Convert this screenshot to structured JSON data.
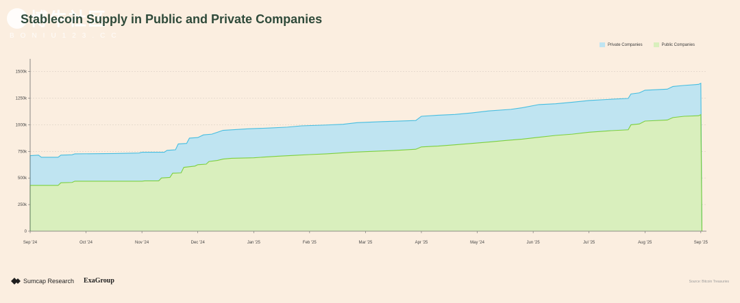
{
  "title": "Stablecoin Supply in Public and Private Companies",
  "watermark": {
    "cn": "博牛社区",
    "latin": "BONIU123.CC"
  },
  "legend": [
    {
      "label": "Private Companies",
      "color": "#bfe4f1"
    },
    {
      "label": "Public Companies",
      "color": "#d9efbd"
    }
  ],
  "footer": {
    "brand1": "Sumcap Research",
    "brand2": "ExaGroup",
    "source": "Source: Bitcoin Treasuries"
  },
  "chart_data": {
    "type": "area",
    "stacked": true,
    "y_ticks": [
      "0",
      "250k",
      "500k",
      "750k",
      "1000k",
      "1250k",
      "1500k"
    ],
    "y_tick_values": [
      0,
      250000,
      500000,
      750000,
      1000000,
      1250000,
      1500000
    ],
    "ylim": [
      0,
      1620000
    ],
    "x_tick_labels": [
      "Sep '24",
      "Oct '24",
      "Nov '24",
      "Dec '24",
      "Jan '25",
      "Feb '25",
      "Mar '25",
      "Apr '25",
      "May '24",
      "Jun '25",
      "Jul '25",
      "Aug '25",
      "Sep '25"
    ],
    "x_range": [
      0,
      12.1
    ],
    "grid": "horizontal-dashed",
    "legend_position": "top-right",
    "series": [
      {
        "name": "Public Companies",
        "stroke": "#7ccf3c",
        "fill": "#d9efbd",
        "points": [
          [
            0,
            430000
          ],
          [
            0.5,
            430000
          ],
          [
            0.55,
            455000
          ],
          [
            0.75,
            458000
          ],
          [
            0.8,
            470000
          ],
          [
            2.0,
            470000
          ],
          [
            2.05,
            473000
          ],
          [
            2.3,
            473000
          ],
          [
            2.35,
            500000
          ],
          [
            2.5,
            505000
          ],
          [
            2.55,
            545000
          ],
          [
            2.7,
            548000
          ],
          [
            2.75,
            600000
          ],
          [
            2.95,
            612000
          ],
          [
            3.0,
            625000
          ],
          [
            3.15,
            630000
          ],
          [
            3.2,
            655000
          ],
          [
            3.35,
            665000
          ],
          [
            3.45,
            678000
          ],
          [
            3.6,
            685000
          ],
          [
            4.0,
            690000
          ],
          [
            4.2,
            697000
          ],
          [
            4.45,
            705000
          ],
          [
            4.75,
            713000
          ],
          [
            5.0,
            720000
          ],
          [
            5.3,
            727000
          ],
          [
            5.5,
            733000
          ],
          [
            5.75,
            742000
          ],
          [
            6.0,
            748000
          ],
          [
            6.5,
            758000
          ],
          [
            6.9,
            770000
          ],
          [
            7.0,
            792000
          ],
          [
            7.3,
            800000
          ],
          [
            7.6,
            812000
          ],
          [
            7.9,
            825000
          ],
          [
            8.2,
            838000
          ],
          [
            8.5,
            852000
          ],
          [
            8.8,
            865000
          ],
          [
            9.1,
            883000
          ],
          [
            9.4,
            900000
          ],
          [
            9.7,
            912000
          ],
          [
            10.0,
            930000
          ],
          [
            10.4,
            945000
          ],
          [
            10.7,
            953000
          ],
          [
            10.75,
            1000000
          ],
          [
            10.9,
            1008000
          ],
          [
            11.0,
            1035000
          ],
          [
            11.4,
            1045000
          ],
          [
            11.5,
            1068000
          ],
          [
            11.7,
            1080000
          ],
          [
            11.96,
            1085000
          ],
          [
            12.0,
            1095000
          ],
          [
            12.02,
            0
          ]
        ]
      },
      {
        "name": "Private Companies",
        "stroke": "#45bde0",
        "fill": "#bfe4f1",
        "points": [
          [
            0,
            710000
          ],
          [
            0.15,
            715000
          ],
          [
            0.2,
            695000
          ],
          [
            0.5,
            695000
          ],
          [
            0.55,
            715000
          ],
          [
            0.75,
            718000
          ],
          [
            0.8,
            727000
          ],
          [
            1.5,
            730000
          ],
          [
            1.95,
            735000
          ],
          [
            2.0,
            742000
          ],
          [
            2.4,
            742000
          ],
          [
            2.45,
            760000
          ],
          [
            2.6,
            765000
          ],
          [
            2.65,
            820000
          ],
          [
            2.8,
            825000
          ],
          [
            2.85,
            875000
          ],
          [
            3.0,
            880000
          ],
          [
            3.1,
            905000
          ],
          [
            3.25,
            912000
          ],
          [
            3.35,
            930000
          ],
          [
            3.45,
            948000
          ],
          [
            3.9,
            962000
          ],
          [
            4.3,
            970000
          ],
          [
            4.6,
            978000
          ],
          [
            4.85,
            990000
          ],
          [
            5.3,
            998000
          ],
          [
            5.6,
            1005000
          ],
          [
            5.85,
            1020000
          ],
          [
            6.3,
            1030000
          ],
          [
            6.9,
            1040000
          ],
          [
            7.0,
            1080000
          ],
          [
            7.3,
            1090000
          ],
          [
            7.6,
            1097000
          ],
          [
            7.9,
            1112000
          ],
          [
            8.2,
            1130000
          ],
          [
            8.6,
            1145000
          ],
          [
            8.8,
            1160000
          ],
          [
            9.1,
            1190000
          ],
          [
            9.4,
            1198000
          ],
          [
            9.7,
            1212000
          ],
          [
            10.0,
            1228000
          ],
          [
            10.4,
            1240000
          ],
          [
            10.7,
            1248000
          ],
          [
            10.75,
            1290000
          ],
          [
            10.9,
            1300000
          ],
          [
            11.0,
            1325000
          ],
          [
            11.4,
            1335000
          ],
          [
            11.5,
            1360000
          ],
          [
            11.7,
            1370000
          ],
          [
            11.96,
            1380000
          ],
          [
            12.0,
            1390000
          ],
          [
            12.02,
            0
          ]
        ]
      }
    ]
  }
}
